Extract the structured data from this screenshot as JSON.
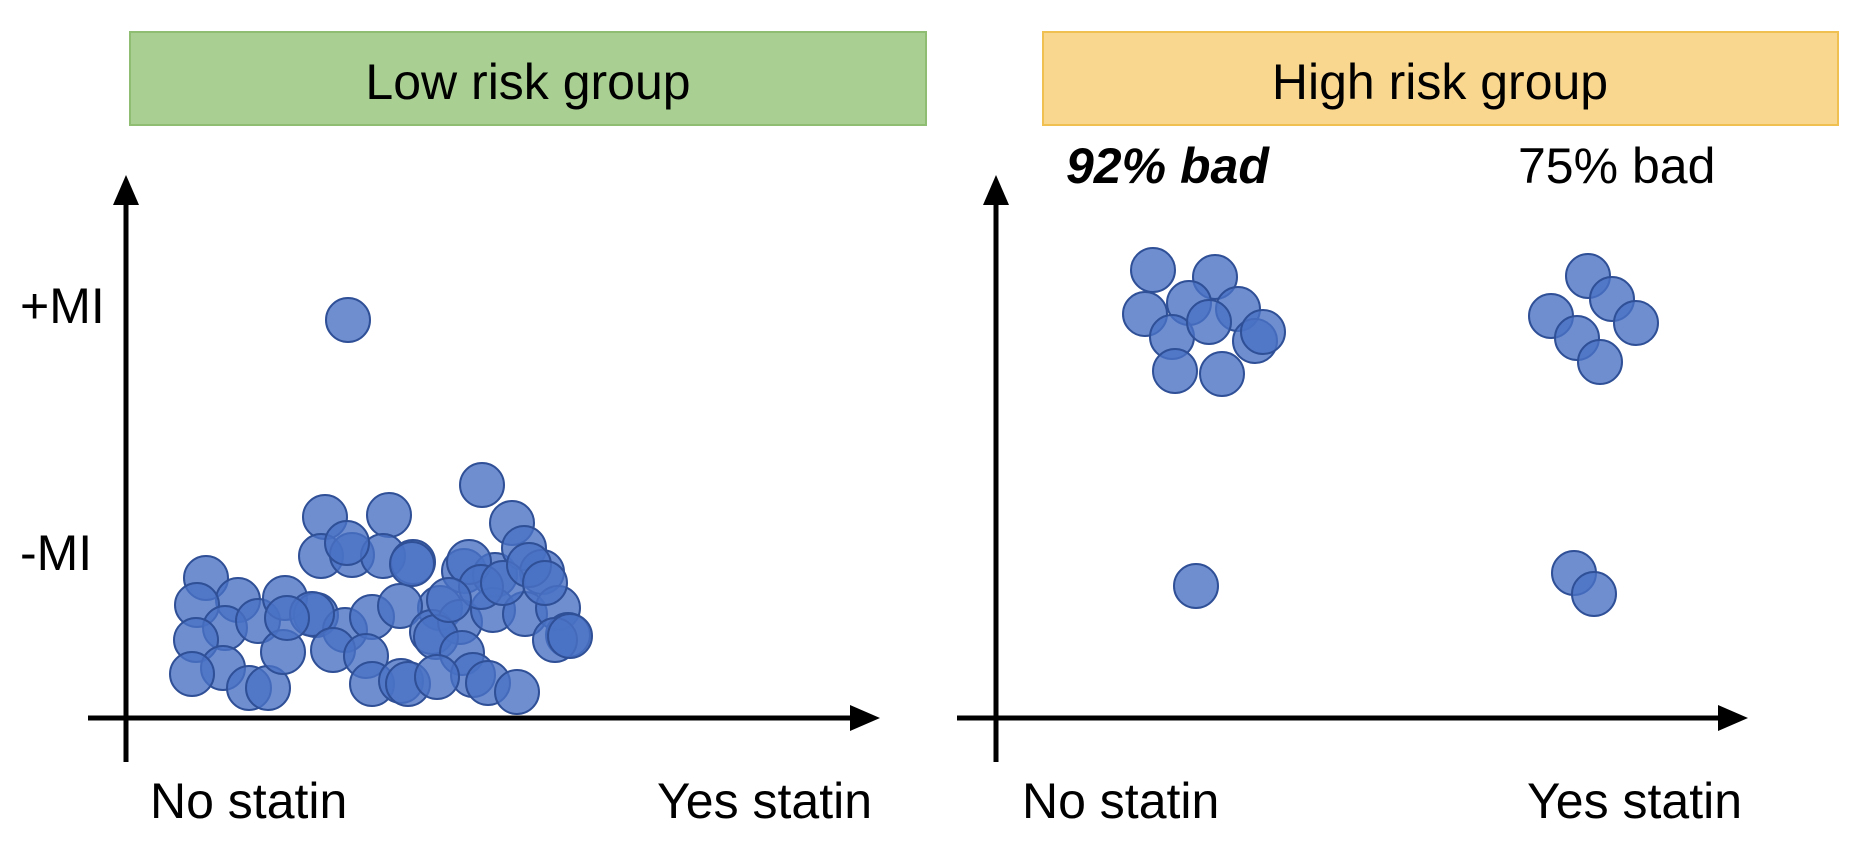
{
  "colors": {
    "low_banner": "#a9cf93",
    "low_banner_border": "#8fbd72",
    "high_banner": "#fad78f",
    "high_banner_border": "#f0c050",
    "dot_fill": "#4a72c4",
    "dot_stroke": "#2f4f96",
    "axis": "#000000"
  },
  "y_ticks": {
    "plus": "+MI",
    "minus": "-MI"
  },
  "panels": [
    {
      "id": "low",
      "title": "Low risk group",
      "x_labels": [
        "No statin",
        "Yes statin"
      ],
      "annotations": [],
      "groups": [
        {
          "statin": "No statin",
          "outcome": "+MI",
          "count": 1
        },
        {
          "statin": "No statin",
          "outcome": "-MI",
          "count": 58
        }
      ]
    },
    {
      "id": "high",
      "title": "High risk group",
      "x_labels": [
        "No statin",
        "Yes statin"
      ],
      "annotations": [
        "92% bad",
        "75% bad"
      ],
      "groups": [
        {
          "statin": "No statin",
          "outcome": "+MI",
          "count": 11
        },
        {
          "statin": "No statin",
          "outcome": "-MI",
          "count": 1
        },
        {
          "statin": "Yes statin",
          "outcome": "+MI",
          "count": 6
        },
        {
          "statin": "Yes statin",
          "outcome": "-MI",
          "count": 2
        }
      ]
    }
  ]
}
